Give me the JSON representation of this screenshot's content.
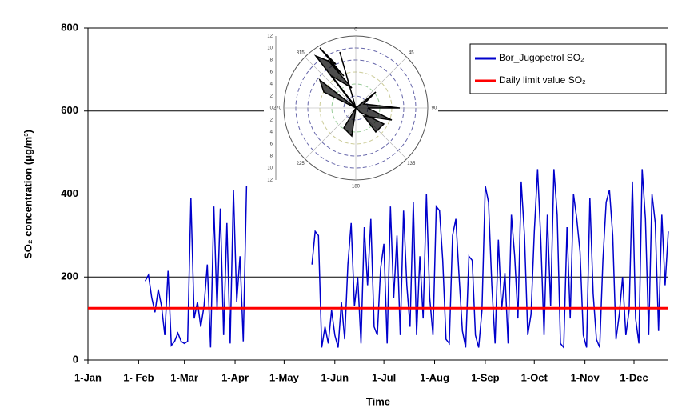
{
  "chart_data": {
    "type": "line",
    "x_label": "Time",
    "y_label": "SO₂ concentration (μg/m³)",
    "xlim": [
      0,
      355
    ],
    "ylim": [
      0,
      800
    ],
    "xticks": [
      {
        "value": 0,
        "label": "1-Jan"
      },
      {
        "value": 31,
        "label": "1- Feb"
      },
      {
        "value": 59,
        "label": "1-Mar"
      },
      {
        "value": 90,
        "label": "1-Apr"
      },
      {
        "value": 120,
        "label": "1-May"
      },
      {
        "value": 151,
        "label": "1-Jun"
      },
      {
        "value": 181,
        "label": "1-Jul"
      },
      {
        "value": 212,
        "label": "1-Aug"
      },
      {
        "value": 243,
        "label": "1-Sep"
      },
      {
        "value": 273,
        "label": "1-Oct"
      },
      {
        "value": 304,
        "label": "1-Nov"
      },
      {
        "value": 334,
        "label": "1-Dec"
      }
    ],
    "yticks": [
      0,
      200,
      400,
      600,
      800
    ],
    "grid": true,
    "legend": "upper right",
    "series": [
      {
        "name": "Bor_Jugopetrol SO₂",
        "color": "#0000cc",
        "x": [
          35,
          37,
          39,
          41,
          43,
          45,
          47,
          49,
          51,
          53,
          55,
          57,
          59,
          61,
          63,
          65,
          67,
          69,
          71,
          73,
          75,
          77,
          79,
          81,
          83,
          85,
          87,
          89,
          91,
          93,
          95,
          97,
          100,
          137,
          139,
          141,
          143,
          145,
          147,
          149,
          151,
          153,
          155,
          157,
          159,
          161,
          163,
          165,
          167,
          169,
          171,
          173,
          175,
          177,
          179,
          181,
          183,
          185,
          187,
          189,
          191,
          193,
          195,
          197,
          199,
          201,
          203,
          205,
          207,
          209,
          211,
          213,
          215,
          217,
          219,
          221,
          223,
          225,
          227,
          229,
          231,
          233,
          235,
          237,
          239,
          241,
          243,
          245,
          247,
          249,
          251,
          253,
          255,
          257,
          259,
          261,
          263,
          265,
          267,
          269,
          271,
          273,
          275,
          277,
          279,
          281,
          283,
          285,
          287,
          289,
          291,
          293,
          295,
          297,
          299,
          301,
          303,
          305,
          307,
          309,
          311,
          313,
          315,
          317,
          319,
          321,
          323,
          325,
          327,
          329,
          331,
          333,
          335,
          337,
          339,
          341,
          343,
          345,
          347,
          349,
          351,
          353,
          355
        ],
        "values": [
          190,
          205,
          150,
          115,
          170,
          130,
          60,
          215,
          35,
          45,
          65,
          45,
          40,
          45,
          390,
          100,
          140,
          80,
          130,
          230,
          30,
          370,
          120,
          365,
          60,
          330,
          40,
          410,
          140,
          250,
          45,
          420,
          null,
          230,
          310,
          300,
          30,
          80,
          40,
          120,
          60,
          30,
          140,
          50,
          230,
          330,
          130,
          200,
          40,
          320,
          180,
          340,
          80,
          60,
          220,
          280,
          40,
          370,
          150,
          300,
          60,
          360,
          180,
          80,
          380,
          60,
          250,
          100,
          400,
          150,
          60,
          370,
          360,
          240,
          50,
          40,
          300,
          340,
          200,
          70,
          30,
          250,
          240,
          60,
          30,
          120,
          420,
          380,
          180,
          40,
          290,
          120,
          210,
          40,
          350,
          250,
          100,
          430,
          300,
          60,
          110,
          310,
          460,
          290,
          60,
          350,
          130,
          460,
          350,
          40,
          30,
          320,
          100,
          400,
          340,
          260,
          60,
          30,
          390,
          160,
          50,
          30,
          240,
          380,
          410,
          300,
          50,
          110,
          200,
          60,
          120,
          430,
          100,
          40,
          460,
          340,
          60,
          400,
          330,
          70,
          350,
          180,
          310
        ]
      },
      {
        "name": "Daily limit value SO₂",
        "color": "#ff0000",
        "x": [
          0,
          355
        ],
        "values": [
          125,
          125
        ]
      }
    ],
    "inset": {
      "angle_labels": [
        "0",
        "45",
        "90",
        "135",
        "180",
        "225",
        "270",
        "315"
      ],
      "radial_labels": [
        "12",
        "10",
        "8",
        "6",
        "4",
        "2",
        "0",
        "2",
        "4",
        "6",
        "8",
        "10",
        "12"
      ]
    }
  }
}
